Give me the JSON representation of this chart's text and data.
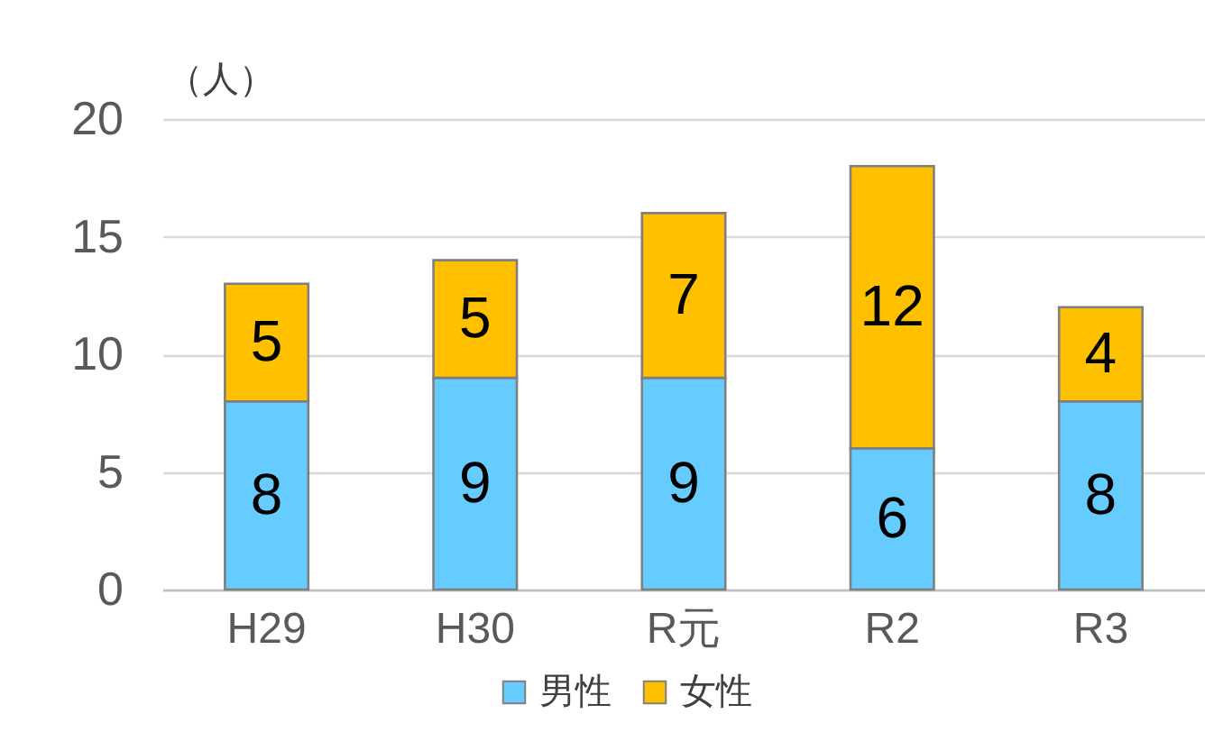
{
  "chart_data": {
    "type": "bar",
    "stacked": true,
    "ylabel": "（人）",
    "categories": [
      "H29",
      "H30",
      "R元",
      "R2",
      "R3"
    ],
    "series": [
      {
        "name": "男性",
        "color": "#66ccff",
        "values": [
          8,
          9,
          9,
          6,
          8
        ]
      },
      {
        "name": "女性",
        "color": "#ffc000",
        "values": [
          5,
          5,
          7,
          12,
          4
        ]
      }
    ],
    "ylim": [
      0,
      20
    ],
    "yticks": [
      0,
      5,
      10,
      15,
      20
    ],
    "grid": "y",
    "legend": "bottom",
    "data_labels": true
  }
}
